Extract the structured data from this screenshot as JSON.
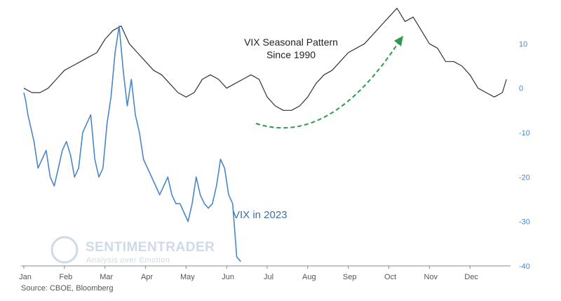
{
  "chart_data": {
    "type": "line",
    "title": "VIX Seasonal Pattern",
    "subtitle": "Since 1990",
    "x_ticks": [
      "Jan",
      "Feb",
      "Mar",
      "Apr",
      "May",
      "Jun",
      "Jul",
      "Aug",
      "Sep",
      "Oct",
      "Nov",
      "Dec"
    ],
    "y_ticks": [
      10,
      0,
      -10,
      -20,
      -30,
      -40
    ],
    "ylim": [
      -40,
      17
    ],
    "xlim": [
      0,
      12
    ],
    "series": [
      {
        "name": "VIX Seasonal Pattern Since 1990",
        "color": "#333333",
        "x": [
          0,
          0.2,
          0.4,
          0.6,
          0.8,
          1.0,
          1.2,
          1.4,
          1.6,
          1.8,
          2.0,
          2.2,
          2.4,
          2.5,
          2.6,
          2.8,
          3.0,
          3.2,
          3.4,
          3.6,
          3.8,
          4.0,
          4.2,
          4.4,
          4.6,
          4.8,
          5.0,
          5.2,
          5.4,
          5.6,
          5.8,
          6.0,
          6.2,
          6.4,
          6.6,
          6.8,
          7.0,
          7.2,
          7.4,
          7.6,
          7.8,
          8.0,
          8.2,
          8.4,
          8.6,
          8.8,
          9.0,
          9.2,
          9.4,
          9.6,
          9.8,
          10.0,
          10.2,
          10.4,
          10.6,
          10.8,
          11.0,
          11.2,
          11.4,
          11.6,
          11.8,
          11.9
        ],
        "values": [
          0,
          -1,
          -1,
          0,
          2,
          4,
          5,
          6,
          7,
          8,
          11,
          13,
          14,
          12,
          10,
          8,
          6,
          4,
          3,
          1,
          -1,
          -2,
          -1,
          2,
          3,
          2,
          0,
          1,
          2,
          3,
          2,
          -2,
          -4,
          -5,
          -5,
          -4,
          -2,
          1,
          3,
          4,
          6,
          8,
          9,
          10,
          12,
          14,
          16,
          18,
          15,
          16,
          13,
          10,
          9,
          6,
          6,
          5,
          3,
          0,
          -1,
          -2,
          -1,
          2
        ]
      },
      {
        "name": "VIX in 2023",
        "color": "#4a86c8",
        "x": [
          0,
          0.05,
          0.1,
          0.15,
          0.25,
          0.35,
          0.45,
          0.55,
          0.65,
          0.75,
          0.85,
          0.95,
          1.05,
          1.15,
          1.25,
          1.35,
          1.45,
          1.55,
          1.65,
          1.75,
          1.85,
          1.95,
          2.05,
          2.15,
          2.25,
          2.35,
          2.45,
          2.55,
          2.65,
          2.75,
          2.85,
          2.95,
          3.05,
          3.15,
          3.25,
          3.35,
          3.45,
          3.55,
          3.65,
          3.75,
          3.85,
          3.95,
          4.05,
          4.15,
          4.25,
          4.35,
          4.45,
          4.55,
          4.65,
          4.75,
          4.85,
          4.95,
          5.05,
          5.15,
          5.25,
          5.35
        ],
        "values": [
          -1,
          -3,
          -6,
          -8,
          -12,
          -18,
          -16,
          -14,
          -20,
          -22,
          -18,
          -14,
          -12,
          -15,
          -20,
          -18,
          -10,
          -8,
          -6,
          -16,
          -20,
          -18,
          -8,
          -2,
          8,
          14,
          4,
          -4,
          2,
          -6,
          -10,
          -16,
          -18,
          -20,
          -22,
          -24,
          -22,
          -20,
          -24,
          -26,
          -26,
          -28,
          -30,
          -26,
          -20,
          -24,
          -26,
          -27,
          -26,
          -22,
          -16,
          -18,
          -24,
          -26,
          -38,
          -39
        ]
      }
    ],
    "annotations": {
      "vix_2023_label": "VIX in 2023"
    }
  },
  "source_text": "Source: CBOE, Bloomberg",
  "watermark": {
    "brand": "SENTIMENTRADER",
    "tagline": "Analysis over Emotion"
  }
}
